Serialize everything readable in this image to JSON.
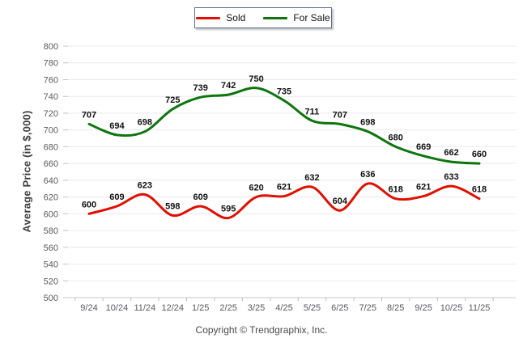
{
  "legend": {
    "items": [
      {
        "label": "Sold",
        "color": "#e01000"
      },
      {
        "label": "For Sale",
        "color": "#0e750e"
      }
    ]
  },
  "y_axis_title": "Average Price (in $,000)",
  "footer_text": "Copyright © Trendgraphix, Inc.",
  "colors": {
    "grid": "#e9e9f0",
    "axis": "#c5c5d3",
    "tick": "#b9b9c9"
  },
  "chart_data": {
    "type": "line",
    "title": "",
    "categories": [
      "9/24",
      "10/24",
      "11/24",
      "12/24",
      "1/25",
      "2/25",
      "3/25",
      "4/25",
      "5/25",
      "6/25",
      "7/25",
      "8/25",
      "9/25",
      "10/25",
      "11/25"
    ],
    "series": [
      {
        "name": "Sold",
        "color": "#e01000",
        "values": [
          600,
          609,
          623,
          598,
          609,
          595,
          620,
          621,
          632,
          604,
          636,
          618,
          621,
          633,
          618
        ]
      },
      {
        "name": "For Sale",
        "color": "#0e750e",
        "values": [
          707,
          694,
          698,
          725,
          739,
          742,
          750,
          735,
          711,
          707,
          698,
          680,
          669,
          662,
          660
        ]
      }
    ],
    "xlabel": "",
    "ylabel": "Average Price (in $,000)",
    "ylim": [
      500,
      800
    ],
    "ytick_step": 20,
    "grid": "horizontal",
    "legend_position": "top",
    "data_labels": true
  }
}
